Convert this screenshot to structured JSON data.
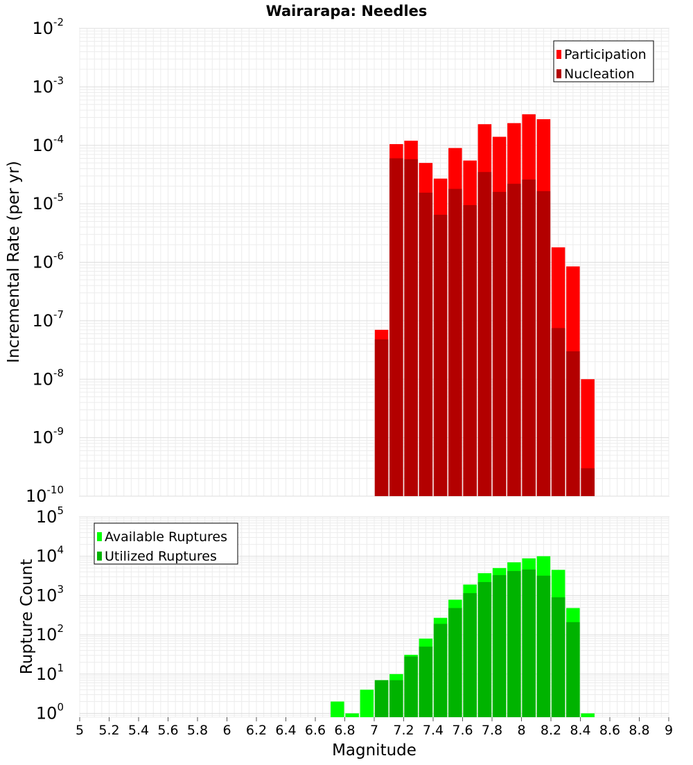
{
  "chart_data": [
    {
      "type": "bar",
      "title": "Wairarapa: Needles",
      "ylabel": "Incremental Rate (per yr)",
      "y_scale": "log",
      "ylim": [
        1e-10,
        0.01
      ],
      "xlim": [
        5,
        9
      ],
      "legend_position": "top-right",
      "grid": true,
      "y_ticks": [
        {
          "base": "10",
          "exp": "-10"
        },
        {
          "base": "10",
          "exp": "-9"
        },
        {
          "base": "10",
          "exp": "-8"
        },
        {
          "base": "10",
          "exp": "-7"
        },
        {
          "base": "10",
          "exp": "-6"
        },
        {
          "base": "10",
          "exp": "-5"
        },
        {
          "base": "10",
          "exp": "-4"
        },
        {
          "base": "10",
          "exp": "-3"
        },
        {
          "base": "10",
          "exp": "-2"
        }
      ],
      "x": [
        7.0,
        7.1,
        7.2,
        7.3,
        7.4,
        7.5,
        7.6,
        7.7,
        7.8,
        7.9,
        8.0,
        8.1,
        8.2,
        8.3,
        8.4
      ],
      "series": [
        {
          "name": "Participation",
          "color": "#ff0000",
          "values": [
            7e-08,
            0.000105,
            0.00012,
            5e-05,
            2.7e-05,
            9e-05,
            5.5e-05,
            0.00023,
            0.00014,
            0.00024,
            0.00034,
            0.00028,
            1.8e-06,
            8.5e-07,
            1e-08
          ]
        },
        {
          "name": "Nucleation",
          "color": "#b30000",
          "values": [
            4.8e-08,
            6e-05,
            5.8e-05,
            1.55e-05,
            6.5e-06,
            1.8e-05,
            9.5e-06,
            3.5e-05,
            1.6e-05,
            2.2e-05,
            2.6e-05,
            1.65e-05,
            7.5e-08,
            3e-08,
            3e-10
          ]
        }
      ]
    },
    {
      "type": "bar",
      "ylabel": "Rupture Count",
      "xlabel": "Magnitude",
      "y_scale": "log",
      "ylim": [
        0.8,
        100000
      ],
      "xlim": [
        5,
        9
      ],
      "legend_position": "top-left",
      "grid": true,
      "y_ticks": [
        {
          "base": "10",
          "exp": "0"
        },
        {
          "base": "10",
          "exp": "1"
        },
        {
          "base": "10",
          "exp": "2"
        },
        {
          "base": "10",
          "exp": "3"
        },
        {
          "base": "10",
          "exp": "4"
        },
        {
          "base": "10",
          "exp": "5"
        }
      ],
      "x_ticks": [
        "5",
        "5.2",
        "5.4",
        "5.6",
        "5.8",
        "6",
        "6.2",
        "6.4",
        "6.6",
        "6.8",
        "7",
        "7.2",
        "7.4",
        "7.6",
        "7.8",
        "8",
        "8.2",
        "8.4",
        "8.6",
        "8.8",
        "9"
      ],
      "x": [
        6.7,
        6.8,
        6.9,
        7.0,
        7.1,
        7.2,
        7.3,
        7.4,
        7.5,
        7.6,
        7.7,
        7.8,
        7.9,
        8.0,
        8.1,
        8.2,
        8.3,
        8.4
      ],
      "series": [
        {
          "name": "Available Ruptures",
          "color": "#00ff00",
          "values": [
            2,
            1,
            4,
            7,
            10,
            31,
            80,
            270,
            780,
            1900,
            3700,
            5000,
            7000,
            8800,
            10000,
            4500,
            480,
            1
          ]
        },
        {
          "name": "Utilized Ruptures",
          "color": "#00b300",
          "values": [
            0,
            0,
            0,
            7,
            7,
            28,
            50,
            190,
            480,
            1150,
            2200,
            3300,
            4200,
            4600,
            3200,
            900,
            210,
            0
          ]
        }
      ]
    }
  ]
}
